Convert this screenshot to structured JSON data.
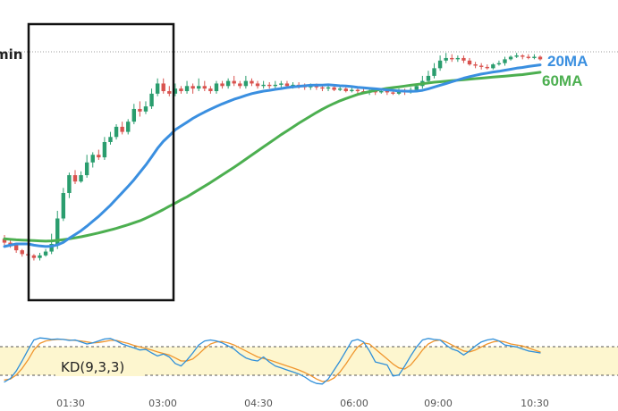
{
  "chart_data": {
    "type": "candlestick",
    "timeframe_fragment": "min",
    "x_ticks": [
      "01:30",
      "03:00",
      "04:30",
      "06:00",
      "09:00",
      "10:30"
    ],
    "moving_averages": [
      {
        "name": "20MA",
        "color": "#3a8fe0"
      },
      {
        "name": "60MA",
        "color": "#4caf50"
      }
    ],
    "indicator": {
      "name": "KD(9,3,3)",
      "k_color": "#2f8fd9",
      "d_color": "#f0962e",
      "overbought": 80,
      "oversold": 20,
      "ylim": [
        0,
        100
      ]
    },
    "colors": {
      "up": "#2a9d6e",
      "down": "#d9534f"
    },
    "ylim": [
      0,
      100
    ],
    "candles": [
      [
        22,
        20.5,
        23.5,
        19.5
      ],
      [
        20.5,
        19.5,
        21.5,
        18.5
      ],
      [
        19.5,
        17.5,
        20,
        16.5
      ],
      [
        17.5,
        16,
        18,
        15
      ],
      [
        16,
        15.5,
        17,
        14.5
      ],
      [
        15.5,
        14.5,
        16,
        13.5
      ],
      [
        14.5,
        15.5,
        16.5,
        13.5
      ],
      [
        15.5,
        17,
        18,
        15
      ],
      [
        17,
        20,
        24,
        16
      ],
      [
        20,
        30,
        33,
        18
      ],
      [
        30,
        40,
        42,
        29
      ],
      [
        40,
        47,
        48,
        38
      ],
      [
        47,
        44.5,
        49,
        43.5
      ],
      [
        44.5,
        47,
        48.5,
        44
      ],
      [
        47,
        52,
        55,
        46
      ],
      [
        52,
        55,
        56,
        50
      ],
      [
        55,
        54,
        57,
        53
      ],
      [
        54,
        60,
        62,
        53
      ],
      [
        60,
        62,
        64,
        59
      ],
      [
        62,
        66,
        67,
        61
      ],
      [
        66,
        64,
        68,
        63
      ],
      [
        64,
        68,
        69,
        63
      ],
      [
        68,
        73,
        75,
        67
      ],
      [
        73,
        72,
        76,
        70
      ],
      [
        72,
        74,
        76,
        71
      ],
      [
        74,
        79,
        81,
        73
      ],
      [
        79,
        83,
        85,
        78
      ],
      [
        83,
        80,
        85,
        79
      ],
      [
        80,
        79,
        82,
        78
      ],
      [
        79,
        81,
        83,
        78
      ],
      [
        81,
        80,
        82,
        79
      ],
      [
        80,
        82,
        84,
        79
      ],
      [
        82,
        81,
        83,
        79
      ],
      [
        81,
        82,
        85,
        80
      ],
      [
        82,
        81,
        84,
        80
      ],
      [
        81,
        80,
        82,
        79
      ],
      [
        80,
        83,
        84,
        79
      ],
      [
        83,
        82,
        84,
        81
      ],
      [
        82,
        84,
        85,
        81
      ],
      [
        84,
        83,
        86,
        82
      ],
      [
        83,
        82,
        84,
        81
      ],
      [
        82,
        84,
        86,
        81
      ],
      [
        84,
        83,
        85,
        82
      ],
      [
        83,
        82,
        84,
        81
      ],
      [
        82,
        82.5,
        84,
        81
      ],
      [
        82.5,
        82,
        83.5,
        81
      ],
      [
        82,
        82.5,
        84,
        81
      ],
      [
        82.5,
        83,
        84,
        81.5
      ],
      [
        83,
        82,
        84,
        81
      ],
      [
        82,
        82.5,
        83.5,
        81
      ],
      [
        82.5,
        82,
        83.5,
        81
      ],
      [
        82,
        81.5,
        83,
        80.5
      ],
      [
        81.5,
        82,
        83,
        80.5
      ],
      [
        82,
        81.5,
        83,
        80.5
      ],
      [
        81.5,
        81,
        82.5,
        80
      ],
      [
        81,
        81.5,
        82.5,
        80
      ],
      [
        81.5,
        80.5,
        82,
        80
      ],
      [
        80.5,
        81,
        82,
        80
      ],
      [
        81,
        80,
        81.5,
        79.5
      ],
      [
        80,
        80.5,
        81.5,
        79.5
      ],
      [
        80.5,
        80,
        81.5,
        79
      ],
      [
        80,
        79.5,
        81,
        79
      ],
      [
        79.5,
        80,
        81,
        78.5
      ],
      [
        80,
        79.5,
        81,
        78.5
      ],
      [
        79.5,
        80,
        81,
        79
      ],
      [
        80,
        79.5,
        81,
        78.5
      ],
      [
        79.5,
        79,
        80.5,
        78.5
      ],
      [
        79,
        80,
        81,
        78.5
      ],
      [
        80,
        79.5,
        81,
        78.5
      ],
      [
        79.5,
        80.5,
        81.5,
        79
      ],
      [
        80.5,
        82,
        83,
        80
      ],
      [
        82,
        84,
        86,
        81
      ],
      [
        84,
        86,
        88,
        83
      ],
      [
        86,
        89,
        91,
        85
      ],
      [
        89,
        92,
        94,
        88
      ],
      [
        92,
        93,
        95,
        91
      ],
      [
        93,
        92.5,
        94.5,
        91.5
      ],
      [
        92.5,
        93,
        94,
        91.5
      ],
      [
        93,
        92,
        94,
        91
      ],
      [
        92,
        90.5,
        93,
        90
      ],
      [
        90.5,
        90,
        91.5,
        89
      ],
      [
        90,
        89.5,
        91,
        88.5
      ],
      [
        89.5,
        89,
        90.5,
        88.5
      ],
      [
        89,
        90.5,
        91,
        88.5
      ],
      [
        90.5,
        91,
        92,
        90
      ],
      [
        91,
        92.5,
        93.5,
        90
      ],
      [
        92.5,
        93.5,
        94,
        92
      ],
      [
        93.5,
        94,
        95,
        93
      ],
      [
        94,
        93.5,
        94.5,
        92.5
      ],
      [
        93.5,
        93,
        94.5,
        92.5
      ],
      [
        93,
        93.5,
        94.5,
        92.5
      ],
      [
        93.5,
        92.5,
        94,
        92
      ]
    ],
    "ma20": [
      19,
      19.5,
      20,
      20,
      20,
      19.5,
      19.2,
      19,
      19.1,
      19.6,
      20.6,
      22.2,
      23.7,
      25.2,
      27,
      28.9,
      30.8,
      33,
      35.2,
      37.7,
      40.1,
      42.6,
      45.2,
      48.1,
      51,
      54.2,
      57.5,
      60.3,
      62.5,
      64.8,
      66.3,
      67.8,
      69.3,
      70.6,
      71.8,
      72.9,
      74,
      75,
      75.9,
      76.8,
      77.5,
      78.3,
      79,
      79.5,
      80,
      80.3,
      80.7,
      81,
      81.4,
      81.7,
      81.9,
      82.1,
      82.3,
      82.4,
      82.4,
      82.5,
      82.3,
      82.1,
      82,
      81.8,
      81.5,
      81.3,
      81.1,
      80.9,
      80.7,
      80.5,
      80.3,
      80.1,
      80,
      79.9,
      80,
      80.3,
      80.9,
      81.6,
      82.3,
      83,
      83.7,
      84.4,
      85.1,
      85.7,
      86.2,
      86.7,
      87.1,
      87.5,
      87.8,
      88.2,
      88.6,
      89,
      89.3,
      89.7,
      90,
      90.3
    ],
    "ma60": [
      22,
      21.8,
      21.6,
      21.5,
      21.4,
      21.3,
      21.2,
      21.1,
      21.2,
      21.4,
      21.7,
      22,
      22.4,
      22.8,
      23.3,
      23.8,
      24.3,
      24.9,
      25.5,
      26.1,
      26.8,
      27.5,
      28.3,
      29.1,
      30.1,
      31.2,
      32.3,
      33.5,
      34.8,
      36,
      37.3,
      38.5,
      39.9,
      41.3,
      42.7,
      44.1,
      45.6,
      47.1,
      48.6,
      50.1,
      51.7,
      53.3,
      54.9,
      56.5,
      58.1,
      59.7,
      61.3,
      62.9,
      64.4,
      65.9,
      67.4,
      68.8,
      70.2,
      71.6,
      72.9,
      74.1,
      75.2,
      76.2,
      77.1,
      77.9,
      78.7,
      79.3,
      79.8,
      80.3,
      80.7,
      81.1,
      81.4,
      81.7,
      82,
      82.3,
      82.6,
      82.9,
      83.2,
      83.5,
      83.7,
      83.9,
      84.1,
      84.3,
      84.5,
      84.7,
      84.9,
      85.1,
      85.3,
      85.5,
      85.7,
      85.9,
      86.1,
      86.3,
      86.5,
      86.8,
      87.1,
      87.4
    ],
    "k": [
      8,
      15,
      30,
      50,
      72,
      92,
      96,
      95,
      93,
      94,
      93,
      91,
      92,
      88,
      84,
      86,
      90,
      94,
      95,
      90,
      84,
      80,
      76,
      72,
      73,
      66,
      60,
      64,
      58,
      45,
      40,
      52,
      66,
      82,
      90,
      92,
      90,
      86,
      80,
      74,
      64,
      56,
      52,
      50,
      58,
      48,
      40,
      36,
      32,
      28,
      24,
      18,
      10,
      5,
      4,
      14,
      32,
      50,
      70,
      90,
      93,
      88,
      70,
      48,
      45,
      42,
      20,
      22,
      40,
      60,
      78,
      92,
      95,
      93,
      92,
      82,
      74,
      70,
      62,
      70,
      80,
      88,
      92,
      94,
      90,
      82,
      80,
      78,
      74,
      70,
      68,
      66
    ],
    "d": [
      12,
      14,
      22,
      35,
      52,
      72,
      85,
      90,
      92,
      93,
      93,
      92,
      91,
      90,
      88,
      86,
      87,
      89,
      91,
      91,
      88,
      85,
      81,
      78,
      75,
      72,
      68,
      65,
      62,
      56,
      50,
      50,
      54,
      64,
      75,
      84,
      88,
      89,
      86,
      82,
      76,
      70,
      64,
      58,
      55,
      52,
      48,
      44,
      40,
      36,
      32,
      27,
      21,
      14,
      9,
      10,
      16,
      28,
      44,
      62,
      78,
      86,
      84,
      74,
      64,
      54,
      44,
      36,
      34,
      42,
      56,
      72,
      84,
      90,
      92,
      88,
      82,
      76,
      70,
      68,
      72,
      78,
      84,
      88,
      90,
      88,
      84,
      82,
      80,
      76,
      72,
      68
    ]
  }
}
